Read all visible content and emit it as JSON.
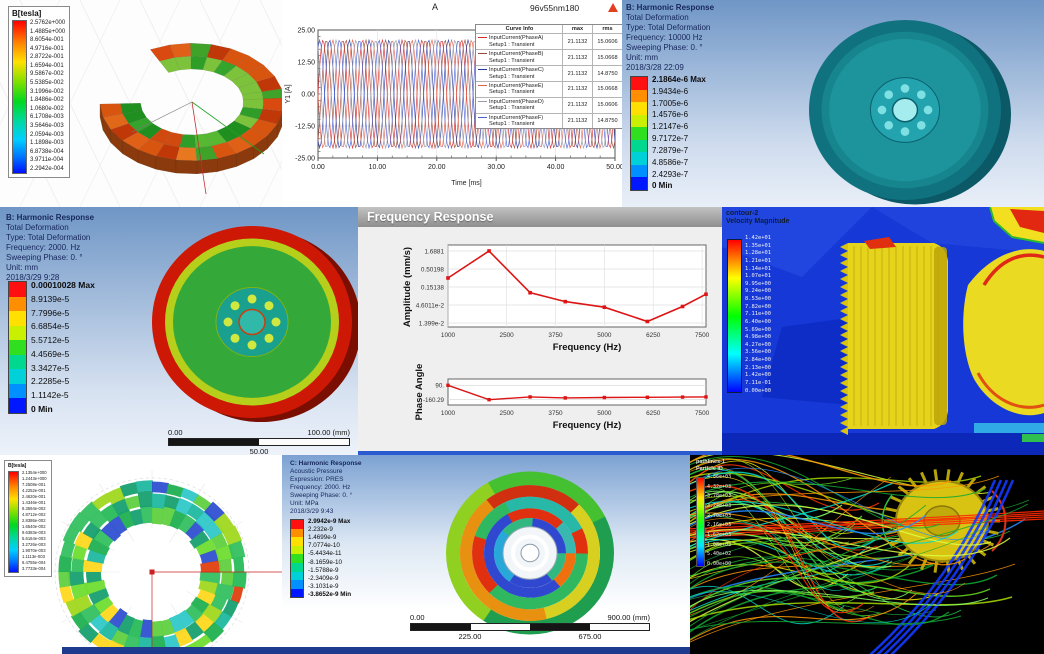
{
  "panel_torus": {
    "legend_title": "B[tesla]",
    "legend_values": [
      "2.5762e+000",
      "1.4885e+000",
      "8.6054e-001",
      "4.9716e-001",
      "2.8722e-001",
      "1.6594e-001",
      "9.5867e-002",
      "5.5385e-002",
      "3.1996e-002",
      "1.8486e-002",
      "1.0680e-002",
      "6.1708e-003",
      "3.5646e-003",
      "2.0594e-003",
      "1.1898e-003",
      "6.8738e-004",
      "3.9711e-004",
      "2.2942e-004"
    ]
  },
  "panel_currents": {
    "title": "A",
    "model_label": "96v55nm180",
    "ylabel": "Y1 [A]",
    "xlabel": "Time [ms]",
    "y_ticks": [
      "25.00",
      "12.50",
      "0.00",
      "-12.50",
      "-25.00"
    ],
    "x_ticks": [
      "0.00",
      "10.00",
      "20.00",
      "30.00",
      "40.00",
      "50.00"
    ],
    "table_headers": [
      "Curve Info",
      "max",
      "rms"
    ],
    "curves": [
      {
        "label": "InputCurrent(PhaseA)",
        "setup": "Setup1 : Transient",
        "max": "21.1132",
        "rms": "15.0606",
        "color": "#d42a2a",
        "phase_deg": 0
      },
      {
        "label": "InputCurrent(PhaseB)",
        "setup": "Setup1 : Transient",
        "max": "21.1132",
        "rms": "15.0668",
        "color": "#9a4a3a",
        "phase_deg": 300
      },
      {
        "label": "InputCurrent(PhaseC)",
        "setup": "Setup1 : Transient",
        "max": "21.1132",
        "rms": "14.8750",
        "color": "#283a9e",
        "phase_deg": 240
      },
      {
        "label": "InputCurrent(PhaseE)",
        "setup": "Setup1 : Transient",
        "max": "21.1132",
        "rms": "15.0668",
        "color": "#e0604a",
        "phase_deg": 180
      },
      {
        "label": "InputCurrent(PhaseD)",
        "setup": "Setup1 : Transient",
        "max": "21.1132",
        "rms": "15.0606",
        "color": "#9a9aa8",
        "phase_deg": 120
      },
      {
        "label": "InputCurrent(PhaseF)",
        "setup": "Setup1 : Transient",
        "max": "21.1132",
        "rms": "14.8750",
        "color": "#4a62d8",
        "phase_deg": 60
      }
    ],
    "chart_data": {
      "type": "line",
      "x_range_ms": [
        0,
        50
      ],
      "amplitude_a": 21.1132,
      "cycles": 15,
      "ylim": [
        -25,
        25
      ],
      "series": [
        "InputCurrent(PhaseA)",
        "InputCurrent(PhaseB)",
        "InputCurrent(PhaseC)",
        "InputCurrent(PhaseE)",
        "InputCurrent(PhaseD)",
        "InputCurrent(PhaseF)"
      ]
    }
  },
  "panel_harmonic_10000": {
    "header_lines": [
      "B: Harmonic Response",
      "Total Deformation",
      "Type: Total Deformation",
      "Frequency: 10000 Hz",
      "Sweeping Phase: 0. °",
      "Unit: mm",
      "2018/3/28 22:09"
    ],
    "legend_values": [
      "2.1864e-6 Max",
      "1.9434e-6",
      "1.7005e-6",
      "1.4576e-6",
      "1.2147e-6",
      "9.7172e-7",
      "7.2879e-7",
      "4.8586e-7",
      "2.4293e-7",
      "0 Min"
    ]
  },
  "panel_harmonic_2000": {
    "header_lines": [
      "B: Harmonic Response",
      "Total Deformation",
      "Type: Total Deformation",
      "Frequency: 2000. Hz",
      "Sweeping Phase: 0. °",
      "Unit: mm",
      "2018/3/29 9:28"
    ],
    "legend_values": [
      "0.00010028 Max",
      "8.9139e-5",
      "7.7996e-5",
      "6.6854e-5",
      "5.5712e-5",
      "4.4569e-5",
      "3.3427e-5",
      "2.2285e-5",
      "1.1142e-5",
      "0 Min"
    ],
    "scale_bar": {
      "left": "0.00",
      "right": "100.00 (mm)",
      "mid": "50.00"
    }
  },
  "panel_freq_response": {
    "title": "Frequency Response",
    "line_color": "#dd1414",
    "amplitude": {
      "ylabel": "Amplitude (mm/s)",
      "y_ticks": [
        "1.6881",
        "0.50198",
        "0.15138",
        "4.6011e-2",
        "1.399e-2"
      ],
      "x_ticks": [
        "1000",
        "2500",
        "3750",
        "5000",
        "6250",
        "7500"
      ],
      "xlabel": "Frequency (Hz)"
    },
    "phase": {
      "ylabel": "Phase Angle",
      "y_ticks": [
        "90.",
        "-160.29"
      ],
      "x_ticks": [
        "1000",
        "2500",
        "3750",
        "5000",
        "6250",
        "7500"
      ],
      "xlabel": "Frequency (Hz)"
    },
    "chart_data": [
      {
        "type": "line",
        "name": "amplitude_mm_s",
        "yscale": "log",
        "x": [
          1000,
          2050,
          3100,
          4000,
          5000,
          6100,
          7000,
          7600
        ],
        "y": [
          0.28,
          1.69,
          0.105,
          0.058,
          0.04,
          0.0155,
          0.042,
          0.095
        ]
      },
      {
        "type": "line",
        "name": "phase_angle_deg",
        "x": [
          1000,
          2050,
          3100,
          4000,
          5000,
          6100,
          7000,
          7600
        ],
        "y": [
          90,
          -160,
          -112,
          -128,
          -122,
          -118,
          -115,
          -112
        ]
      }
    ]
  },
  "panel_velocity": {
    "title_lines": [
      "contour-2",
      "Velocity Magnitude"
    ],
    "legend_values": [
      "1.42e+01",
      "1.35e+01",
      "1.28e+01",
      "1.21e+01",
      "1.14e+01",
      "1.07e+01",
      "9.95e+00",
      "9.24e+00",
      "8.53e+00",
      "7.82e+00",
      "7.11e+00",
      "6.40e+00",
      "5.69e+00",
      "4.98e+00",
      "4.27e+00",
      "3.56e+00",
      "2.84e+00",
      "2.13e+00",
      "1.42e+00",
      "7.11e-01",
      "0.00e+00"
    ]
  },
  "panel_ring": {
    "legend_title": "B[tesla]",
    "legend_values": [
      "2.1354e+000",
      "1.2443e+000",
      "7.2508e-001",
      "4.2252e-001",
      "2.4620e-001",
      "1.4346e-001",
      "8.3594e-002",
      "4.8712e-002",
      "2.8386e-002",
      "1.6540e-002",
      "9.6383e-003",
      "5.6164e-003",
      "3.2726e-003",
      "1.9070e-003",
      "1.1113e-003",
      "6.4755e-004",
      "3.7733e-004"
    ]
  },
  "panel_acoustic": {
    "header_lines": [
      "C: Harmonic Response",
      "Acoustic Pressure",
      "Expression: PRES",
      "Frequency: 2000. Hz",
      "Sweeping Phase: 0. °",
      "Unit: MPa",
      "2018/3/29 9:43"
    ],
    "legend_values": [
      "2.9942e-9 Max",
      "2.232e-9",
      "1.4699e-9",
      "7.0774e-10",
      "-5.4434e-11",
      "-8.1659e-10",
      "-1.5788e-9",
      "-2.3409e-9",
      "-3.1031e-9",
      "-3.8652e-9 Min"
    ],
    "scale_bar": {
      "left": "0.00",
      "right": "900.00 (mm)",
      "mid_left": "225.00",
      "mid_right": "675.00"
    }
  },
  "panel_pathlines": {
    "title_lines": [
      "pathlines-1",
      "Particle ID"
    ],
    "legend_values": [
      "4.86e+03",
      "4.32e+03",
      "3.78e+03",
      "3.24e+03",
      "2.70e+03",
      "2.16e+03",
      "1.62e+03",
      "1.08e+03",
      "5.40e+02",
      "0.00e+00"
    ]
  }
}
